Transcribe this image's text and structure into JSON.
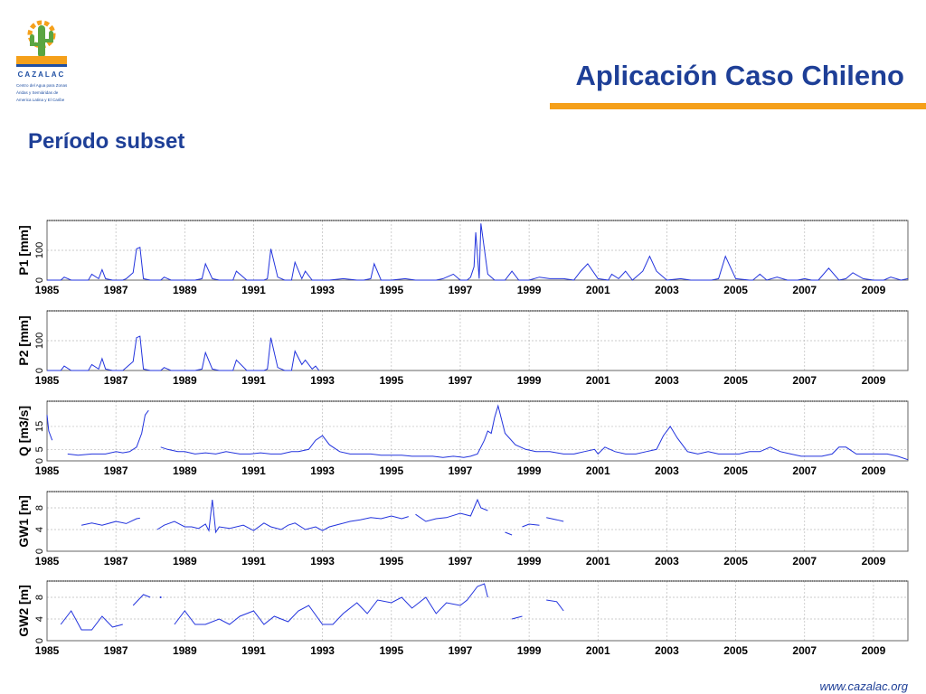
{
  "brand": {
    "name": "CAZALAC",
    "tagline_lines": [
      "Centro del Agua para Zonas",
      "Áridas y Semiáridas de",
      "America Latina y El Caribe"
    ],
    "logo_icon": "cactus-sun-icon",
    "colors": {
      "orange": "#f5a01a",
      "green": "#5aa541",
      "blue": "#1e3f97"
    }
  },
  "header": {
    "title": "Aplicación Caso Chileno",
    "subtitle": "Período subset"
  },
  "footer": {
    "url": "www.cazalac.org"
  },
  "colors": {
    "series": "#2233dd",
    "grid": "#bbbbbb",
    "frame": "#666666"
  },
  "chart_data": [
    {
      "type": "line",
      "ylabel": "P1 [mm]",
      "xlim": [
        1985,
        2010
      ],
      "ylim": [
        0,
        200
      ],
      "yticks": [
        0,
        100
      ],
      "xticks": [
        "1985",
        "1987",
        "1989",
        "1991",
        "1993",
        "1995",
        "1997",
        "1999",
        "2001",
        "2003",
        "2005",
        "2007",
        "2009"
      ],
      "grid": true,
      "x": [
        1985.0,
        1985.4,
        1985.5,
        1985.7,
        1986.0,
        1986.2,
        1986.3,
        1986.5,
        1986.6,
        1986.7,
        1986.9,
        1987.0,
        1987.2,
        1987.3,
        1987.5,
        1987.6,
        1987.7,
        1987.8,
        1988.0,
        1988.3,
        1988.4,
        1988.6,
        1989.0,
        1989.3,
        1989.5,
        1989.6,
        1989.8,
        1990.0,
        1990.3,
        1990.4,
        1990.5,
        1990.8,
        1991.0,
        1991.3,
        1991.4,
        1991.5,
        1991.7,
        1991.9,
        1992.0,
        1992.1,
        1992.2,
        1992.4,
        1992.5,
        1992.7,
        1993.0,
        1993.2,
        1993.6,
        1994.0,
        1994.2,
        1994.4,
        1994.5,
        1994.7,
        1995.0,
        1995.4,
        1995.7,
        1996.0,
        1996.3,
        1996.5,
        1996.8,
        1997.0,
        1997.2,
        1997.3,
        1997.4,
        1997.45,
        1997.55,
        1997.6,
        1997.8,
        1998.0,
        1998.3,
        1998.5,
        1998.7,
        1999.0,
        1999.3,
        1999.6,
        2000.0,
        2000.3,
        2000.5,
        2000.7,
        2001.0,
        2001.3,
        2001.4,
        2001.6,
        2001.8,
        2002.0,
        2002.3,
        2002.5,
        2002.7,
        2003.0,
        2003.4,
        2003.7,
        2004.0,
        2004.3,
        2004.5,
        2004.7,
        2005.0,
        2005.4,
        2005.5,
        2005.7,
        2005.9,
        2006.2,
        2006.5,
        2006.8,
        2007.0,
        2007.2,
        2007.4,
        2007.7,
        2008.0,
        2008.2,
        2008.4,
        2008.7,
        2009.0,
        2009.3,
        2009.5,
        2009.8,
        2010.0
      ],
      "y": [
        0,
        0,
        10,
        0,
        0,
        0,
        20,
        5,
        35,
        5,
        0,
        0,
        0,
        5,
        25,
        105,
        110,
        5,
        0,
        0,
        10,
        0,
        0,
        0,
        5,
        55,
        5,
        0,
        0,
        0,
        30,
        0,
        0,
        0,
        5,
        105,
        10,
        0,
        0,
        0,
        60,
        5,
        30,
        0,
        0,
        0,
        5,
        0,
        0,
        5,
        55,
        0,
        0,
        5,
        0,
        0,
        0,
        5,
        20,
        0,
        0,
        10,
        45,
        160,
        5,
        190,
        20,
        0,
        0,
        30,
        0,
        0,
        10,
        5,
        5,
        0,
        30,
        55,
        5,
        0,
        20,
        5,
        30,
        0,
        30,
        80,
        30,
        0,
        5,
        0,
        0,
        0,
        5,
        80,
        5,
        0,
        0,
        20,
        0,
        10,
        0,
        0,
        5,
        0,
        0,
        40,
        0,
        5,
        25,
        5,
        0,
        0,
        10,
        0,
        5
      ]
    },
    {
      "type": "line",
      "ylabel": "P2 [mm]",
      "xlim": [
        1985,
        2010
      ],
      "ylim": [
        0,
        200
      ],
      "yticks": [
        0,
        100
      ],
      "xticks": [
        "1985",
        "1987",
        "1989",
        "1991",
        "1993",
        "1995",
        "1997",
        "1999",
        "2001",
        "2003",
        "2005",
        "2007",
        "2009"
      ],
      "grid": true,
      "x": [
        1985.0,
        1985.4,
        1985.5,
        1985.7,
        1986.0,
        1986.2,
        1986.3,
        1986.5,
        1986.6,
        1986.7,
        1986.9,
        1987.0,
        1987.2,
        1987.3,
        1987.5,
        1987.6,
        1987.7,
        1987.8,
        1988.0,
        1988.3,
        1988.4,
        1988.6,
        1989.0,
        1989.3,
        1989.5,
        1989.6,
        1989.8,
        1990.0,
        1990.3,
        1990.4,
        1990.5,
        1990.8,
        1991.0,
        1991.3,
        1991.4,
        1991.5,
        1991.7,
        1991.9,
        1992.0,
        1992.1,
        1992.2,
        1992.4,
        1992.5,
        1992.7,
        1992.8,
        1992.9
      ],
      "y": [
        0,
        0,
        15,
        0,
        0,
        0,
        20,
        5,
        40,
        5,
        0,
        0,
        0,
        10,
        30,
        110,
        115,
        5,
        0,
        0,
        10,
        0,
        0,
        0,
        5,
        60,
        5,
        0,
        0,
        0,
        35,
        0,
        0,
        0,
        5,
        110,
        10,
        0,
        0,
        0,
        65,
        20,
        35,
        5,
        15,
        0
      ]
    },
    {
      "type": "line",
      "ylabel": "Q [m3/s]",
      "xlim": [
        1985,
        2010
      ],
      "ylim": [
        0,
        26
      ],
      "yticks": [
        0,
        5,
        15
      ],
      "xticks": [
        "1985",
        "1987",
        "1989",
        "1991",
        "1993",
        "1995",
        "1997",
        "1999",
        "2001",
        "2003",
        "2005",
        "2007",
        "2009"
      ],
      "grid": true,
      "segments": [
        {
          "x": [
            1985.0,
            1985.05,
            1985.15
          ],
          "y": [
            20,
            13,
            9
          ]
        },
        {
          "x": [
            1985.6,
            1985.9,
            1986.3,
            1986.7,
            1987.0,
            1987.2,
            1987.4,
            1987.6,
            1987.75,
            1987.85,
            1987.95
          ],
          "y": [
            3,
            2.5,
            3,
            3,
            4,
            3.5,
            4,
            6,
            12,
            20,
            22
          ]
        },
        {
          "x": [
            1988.3,
            1988.5,
            1988.8,
            1989.0,
            1989.3,
            1989.6,
            1989.9,
            1990.2,
            1990.6,
            1990.9,
            1991.2,
            1991.5,
            1991.8,
            1992.1,
            1992.3,
            1992.6,
            1992.8,
            1993.0,
            1993.2,
            1993.5,
            1993.8,
            1994.1,
            1994.4,
            1994.7,
            1995.0,
            1995.3,
            1995.6,
            1995.9,
            1996.2,
            1996.5,
            1996.8,
            1997.1,
            1997.3,
            1997.5,
            1997.7,
            1997.8,
            1997.9,
            1998.0,
            1998.1,
            1998.3,
            1998.6,
            1998.9,
            1999.2,
            1999.6,
            2000.0,
            2000.3,
            2000.6,
            2000.9,
            2001.0,
            2001.2,
            2001.5,
            2001.8,
            2002.1,
            2002.4,
            2002.7,
            2002.9,
            2003.1,
            2003.3,
            2003.6,
            2003.9,
            2004.2,
            2004.5,
            2004.8,
            2005.1,
            2005.4,
            2005.7,
            2006.0,
            2006.3,
            2006.6,
            2006.9,
            2007.2,
            2007.5,
            2007.8,
            2008.0,
            2008.2,
            2008.5,
            2008.8,
            2009.1,
            2009.4,
            2009.7,
            2010.0
          ],
          "y": [
            6,
            5,
            4,
            4,
            3,
            3.5,
            3,
            4,
            3,
            3,
            3.5,
            3,
            3,
            4,
            4,
            5,
            9,
            11,
            7,
            4,
            3,
            3,
            3,
            2.5,
            2.5,
            2.5,
            2,
            2,
            2,
            1.5,
            2,
            1.5,
            2,
            3,
            9,
            13,
            12,
            19,
            24,
            12,
            7,
            5,
            4,
            4,
            3,
            3,
            4,
            5,
            3,
            6,
            4,
            3,
            3,
            4,
            5,
            11,
            15,
            10,
            4,
            3,
            4,
            3,
            3,
            3,
            4,
            4,
            6,
            4,
            3,
            2,
            2,
            2,
            3,
            6,
            6,
            3,
            3,
            3,
            3,
            2,
            0.5
          ]
        }
      ]
    },
    {
      "type": "line",
      "ylabel": "GW1 [m]",
      "xlim": [
        1985,
        2010
      ],
      "ylim": [
        0,
        11
      ],
      "yticks": [
        0,
        4,
        8
      ],
      "xticks": [
        "1985",
        "1987",
        "1989",
        "1991",
        "1993",
        "1995",
        "1997",
        "1999",
        "2001",
        "2003",
        "2005",
        "2007",
        "2009"
      ],
      "grid": true,
      "segments": [
        {
          "x": [
            1986.0,
            1986.3,
            1986.6,
            1987.0,
            1987.3,
            1987.6,
            1987.7
          ],
          "y": [
            4.8,
            5.2,
            4.8,
            5.5,
            5.1,
            6.0,
            6.1
          ]
        },
        {
          "x": [
            1988.2,
            1988.4,
            1988.7,
            1989.0,
            1989.2,
            1989.4,
            1989.6,
            1989.7,
            1989.8,
            1989.9,
            1990.0,
            1990.3,
            1990.7,
            1991.0,
            1991.3,
            1991.5,
            1991.8,
            1992.0,
            1992.2,
            1992.5,
            1992.8,
            1993.0,
            1993.2,
            1993.5,
            1993.8,
            1994.1,
            1994.4,
            1994.7,
            1995.0,
            1995.3,
            1995.5
          ],
          "y": [
            4.0,
            4.8,
            5.5,
            4.5,
            4.5,
            4.2,
            5.0,
            3.8,
            9.5,
            3.5,
            4.5,
            4.2,
            4.8,
            3.8,
            5.2,
            4.5,
            4.0,
            4.8,
            5.2,
            4.0,
            4.5,
            3.8,
            4.5,
            5.0,
            5.5,
            5.8,
            6.2,
            6.0,
            6.5,
            6.0,
            6.4
          ]
        },
        {
          "x": [
            1995.7,
            1996.0,
            1996.3,
            1996.6,
            1997.0,
            1997.3,
            1997.5,
            1997.6,
            1997.8
          ],
          "y": [
            6.8,
            5.5,
            6.0,
            6.2,
            7.0,
            6.5,
            9.5,
            8.0,
            7.5
          ]
        },
        {
          "x": [
            1998.3,
            1998.5
          ],
          "y": [
            3.5,
            3.0
          ]
        },
        {
          "x": [
            1998.8,
            1999.0,
            1999.3
          ],
          "y": [
            4.5,
            5.0,
            4.8
          ]
        },
        {
          "x": [
            1999.5,
            1999.8,
            2000.0
          ],
          "y": [
            6.2,
            5.8,
            5.5
          ]
        }
      ]
    },
    {
      "type": "line",
      "ylabel": "GW2 [m]",
      "xlim": [
        1985,
        2010
      ],
      "ylim": [
        0,
        11
      ],
      "yticks": [
        0,
        4,
        8
      ],
      "xticks": [
        "1985",
        "1987",
        "1989",
        "1991",
        "1993",
        "1995",
        "1997",
        "1999",
        "2001",
        "2003",
        "2005",
        "2007",
        "2009"
      ],
      "grid": true,
      "segments": [
        {
          "x": [
            1985.4,
            1985.7,
            1986.0,
            1986.3,
            1986.6,
            1986.9,
            1987.2
          ],
          "y": [
            3.0,
            5.5,
            2.0,
            2.0,
            4.5,
            2.5,
            3.0
          ]
        },
        {
          "x": [
            1987.5,
            1987.8,
            1988.0
          ],
          "y": [
            6.5,
            8.5,
            8.0
          ]
        },
        {
          "x": [
            1988.3
          ],
          "y": [
            8.0
          ]
        },
        {
          "x": [
            1988.7,
            1989.0,
            1989.3,
            1989.6,
            1990.0,
            1990.3,
            1990.6,
            1991.0,
            1991.3,
            1991.6,
            1992.0,
            1992.3,
            1992.6,
            1993.0,
            1993.3,
            1993.6,
            1994.0,
            1994.3,
            1994.6,
            1995.0,
            1995.3,
            1995.6,
            1996.0,
            1996.3,
            1996.6,
            1997.0,
            1997.2,
            1997.5,
            1997.7,
            1997.8
          ],
          "y": [
            3.0,
            5.5,
            3.0,
            3.0,
            4.0,
            3.0,
            4.5,
            5.5,
            3.0,
            4.5,
            3.5,
            5.5,
            6.5,
            3.0,
            3.0,
            5.0,
            7.0,
            5.0,
            7.5,
            7.0,
            8.0,
            6.0,
            8.0,
            5.0,
            7.0,
            6.5,
            7.5,
            10.0,
            10.5,
            8.0
          ]
        },
        {
          "x": [
            1998.5,
            1998.8
          ],
          "y": [
            4.0,
            4.5
          ]
        },
        {
          "x": [
            1999.5,
            1999.8,
            2000.0
          ],
          "y": [
            7.5,
            7.2,
            5.5
          ]
        }
      ]
    }
  ]
}
